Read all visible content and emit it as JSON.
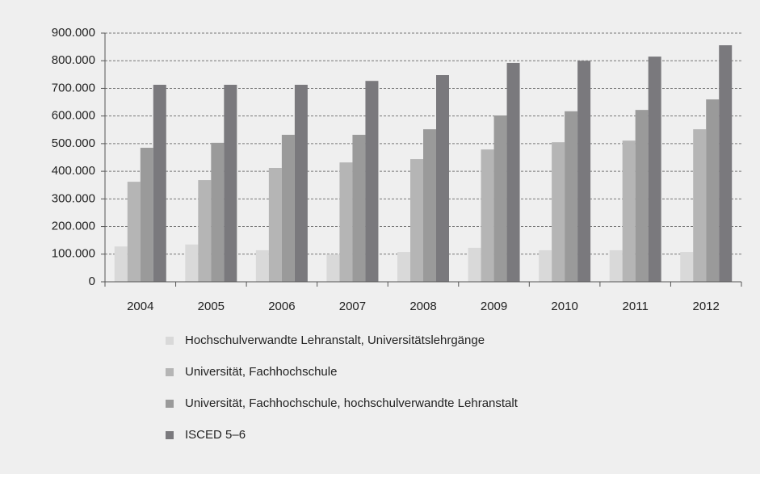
{
  "chart_data": {
    "type": "bar",
    "categories": [
      "2004",
      "2005",
      "2006",
      "2007",
      "2008",
      "2009",
      "2010",
      "2011",
      "2012"
    ],
    "series": [
      {
        "name": "Hochschulverwandte Lehranstalt, Universitätslehrgänge",
        "color": "#d9d9d9",
        "values": [
          128000,
          135000,
          114000,
          99000,
          108000,
          123000,
          114000,
          114000,
          108000
        ]
      },
      {
        "name": "Universität, Fachhochschule",
        "color": "#b5b5b5",
        "values": [
          362000,
          368000,
          412000,
          432000,
          444000,
          479000,
          505000,
          511000,
          552000
        ]
      },
      {
        "name": "Universität, Fachhochschule, hochschulverwandte Lehranstalt",
        "color": "#9a9a9a",
        "values": [
          485000,
          503000,
          532000,
          532000,
          552000,
          602000,
          617000,
          622000,
          660000
        ]
      },
      {
        "name": "ISCED 5–6",
        "color": "#7a797d",
        "values": [
          713000,
          713000,
          713000,
          727000,
          748000,
          792000,
          800000,
          815000,
          856000
        ]
      }
    ],
    "ylim": [
      0,
      900000
    ],
    "yticks": [
      0,
      {
        "value": 100000,
        "label": "100.000"
      },
      {
        "value": 200000,
        "label": "200.000"
      },
      {
        "value": 300000,
        "label": "300.000"
      },
      {
        "value": 400000,
        "label": "400.000"
      },
      {
        "value": 500000,
        "label": "500.000"
      },
      {
        "value": 600000,
        "label": "600.000"
      },
      {
        "value": 700000,
        "label": "700.000"
      },
      {
        "value": 800000,
        "label": "800.000"
      },
      {
        "value": 900000,
        "label": "900.000"
      }
    ],
    "grid": true
  }
}
